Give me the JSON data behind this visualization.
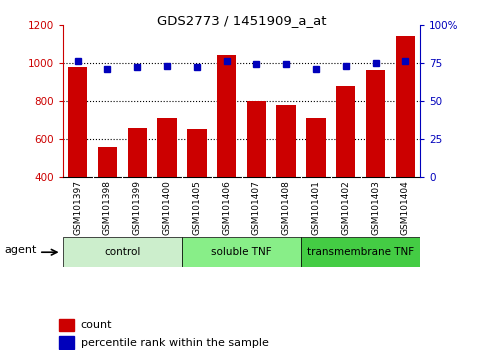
{
  "title": "GDS2773 / 1451909_a_at",
  "samples": [
    "GSM101397",
    "GSM101398",
    "GSM101399",
    "GSM101400",
    "GSM101405",
    "GSM101406",
    "GSM101407",
    "GSM101408",
    "GSM101401",
    "GSM101402",
    "GSM101403",
    "GSM101404"
  ],
  "counts": [
    980,
    560,
    660,
    710,
    650,
    1040,
    800,
    780,
    710,
    880,
    960,
    1140
  ],
  "percentiles": [
    76,
    71,
    72,
    73,
    72,
    76,
    74,
    74,
    71,
    73,
    75,
    76
  ],
  "groups": [
    {
      "label": "control",
      "start": 0,
      "end": 3,
      "color": "#cceecc"
    },
    {
      "label": "soluble TNF",
      "start": 4,
      "end": 7,
      "color": "#88ee88"
    },
    {
      "label": "transmembrane TNF",
      "start": 8,
      "end": 11,
      "color": "#44cc44"
    }
  ],
  "bar_color": "#cc0000",
  "dot_color": "#0000bb",
  "ylim_left": [
    400,
    1200
  ],
  "ylim_right": [
    0,
    100
  ],
  "yticks_left": [
    400,
    600,
    800,
    1000,
    1200
  ],
  "yticks_right": [
    0,
    25,
    50,
    75,
    100
  ],
  "grid_values": [
    600,
    800,
    1000
  ],
  "xticklabel_bg": "#d8d8d8",
  "legend_count_color": "#cc0000",
  "legend_pct_color": "#0000bb"
}
